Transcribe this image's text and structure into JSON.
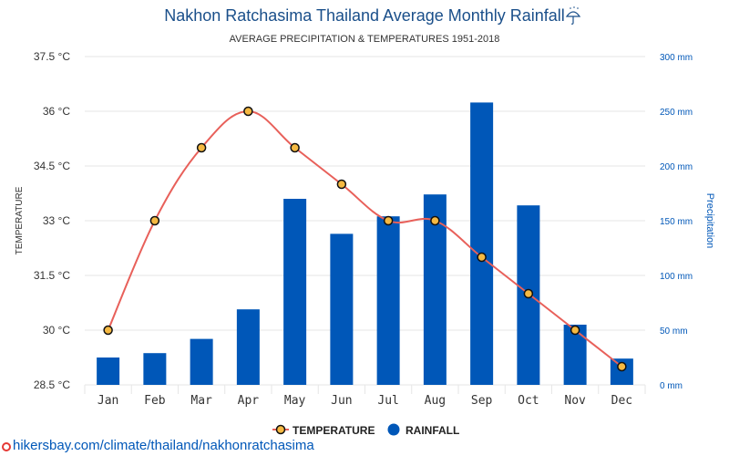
{
  "chart_data": {
    "type": "bar+line",
    "title": "Nakhon Ratchasima Thailand Average Monthly Rainfall",
    "title_icon": "umbrella-rain-icon",
    "subtitle": "AVERAGE PRECIPITATION & TEMPERATURES 1951-2018",
    "categories": [
      "Jan",
      "Feb",
      "Mar",
      "Apr",
      "May",
      "Jun",
      "Jul",
      "Aug",
      "Sep",
      "Oct",
      "Nov",
      "Dec"
    ],
    "series": [
      {
        "name": "TEMPERATURE",
        "type": "line",
        "axis": "left",
        "color": "#e8605a",
        "marker_fill": "#f5b942",
        "values": [
          30,
          33,
          35,
          36,
          35,
          34,
          33,
          33,
          32,
          31,
          30,
          29
        ]
      },
      {
        "name": "RAINFALL",
        "type": "bar",
        "axis": "right",
        "color": "#0057b8",
        "values": [
          25,
          29,
          42,
          69,
          170,
          138,
          154,
          174,
          258,
          164,
          55,
          24
        ]
      }
    ],
    "ylabel_left": "TEMPERATURE",
    "ylabel_right": "Precipitation",
    "ylim_left": [
      28.5,
      37.5
    ],
    "ylim_right": [
      0,
      300
    ],
    "yticks_left": [
      "37.5 °C",
      "36 °C",
      "34.5 °C",
      "33 °C",
      "31.5 °C",
      "30 °C",
      "28.5 °C"
    ],
    "yticks_right": [
      "300 mm",
      "250 mm",
      "200 mm",
      "150 mm",
      "100 mm",
      "50 mm",
      "0 mm"
    ],
    "grid": true,
    "legend_placement": "bottom-center"
  },
  "footer": {
    "url": "hikersbay.com/climate/thailand/nakhonratchasima",
    "icon": "location-pin-icon"
  }
}
